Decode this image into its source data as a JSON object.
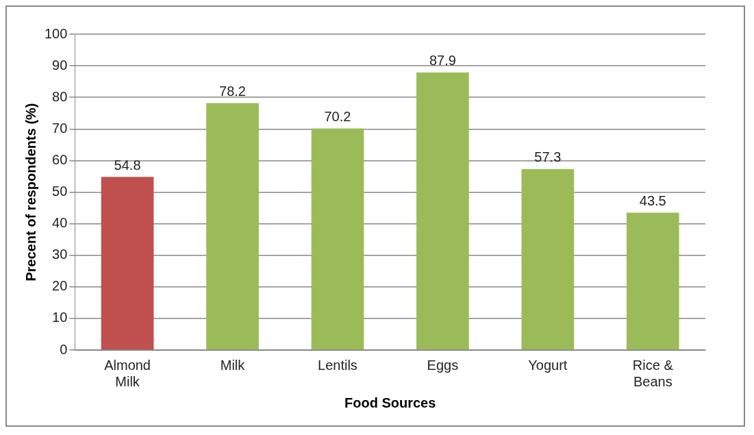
{
  "chart_data": {
    "type": "bar",
    "xlabel": "Food Sources",
    "ylabel": "Precent of respondents (%)",
    "categories": [
      "Almond Milk",
      "Milk",
      "Lentils",
      "Eggs",
      "Yogurt",
      "Rice & Beans"
    ],
    "values": [
      54.8,
      78.2,
      70.2,
      87.9,
      57.3,
      43.5
    ],
    "colors": [
      "#c0504d",
      "#9bbb59",
      "#9bbb59",
      "#9bbb59",
      "#9bbb59",
      "#9bbb59"
    ],
    "ylim": [
      0,
      100
    ],
    "yticks": [
      0,
      10,
      20,
      30,
      40,
      50,
      60,
      70,
      80,
      90,
      100
    ],
    "grid": "y",
    "data_labels": true,
    "legend": false
  }
}
